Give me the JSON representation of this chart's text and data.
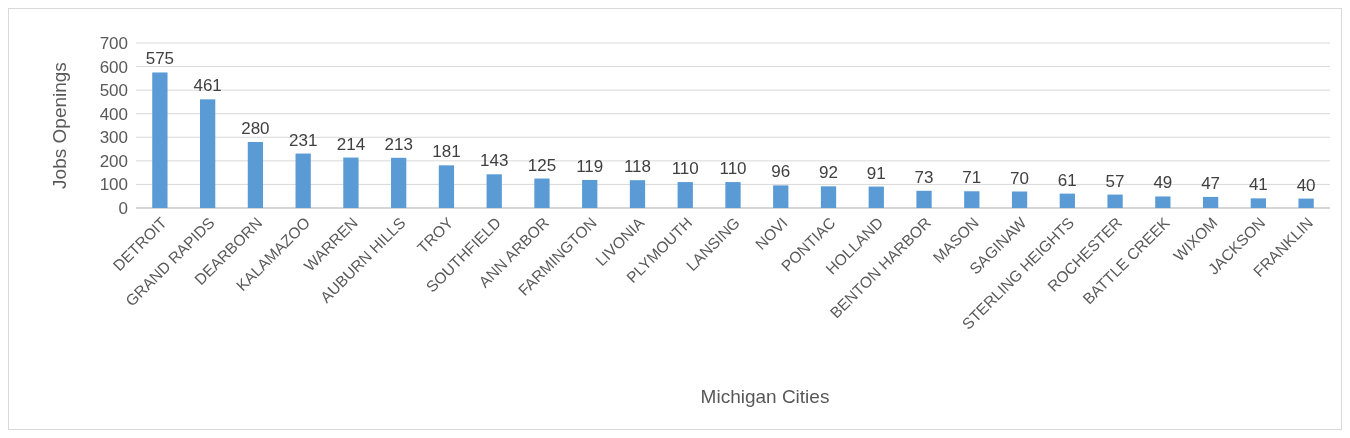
{
  "chart_data": {
    "type": "bar",
    "xlabel": "Michigan Cities",
    "ylabel": "Jobs Openings",
    "categories": [
      "DETROIT",
      "GRAND RAPIDS",
      "DEARBORN",
      "KALAMAZOO",
      "WARREN",
      "AUBURN HILLS",
      "TROY",
      "SOUTHFIELD",
      "ANN ARBOR",
      "FARMINGTON",
      "LIVONIA",
      "PLYMOUTH",
      "LANSING",
      "NOVI",
      "PONTIAC",
      "HOLLAND",
      "BENTON HARBOR",
      "MASON",
      "SAGINAW",
      "STERLING HEIGHTS",
      "ROCHESTER",
      "BATTLE CREEK",
      "WIXOM",
      "JACKSON",
      "FRANKLIN"
    ],
    "values": [
      575,
      461,
      280,
      231,
      214,
      213,
      181,
      143,
      125,
      119,
      118,
      110,
      110,
      96,
      92,
      91,
      73,
      71,
      70,
      61,
      57,
      49,
      47,
      41,
      40
    ],
    "color": "#5b9bd5",
    "ylim": [
      0,
      700
    ],
    "yticks": [
      0,
      100,
      200,
      300,
      400,
      500,
      600,
      700
    ],
    "grid": "y",
    "data_labels": true
  }
}
